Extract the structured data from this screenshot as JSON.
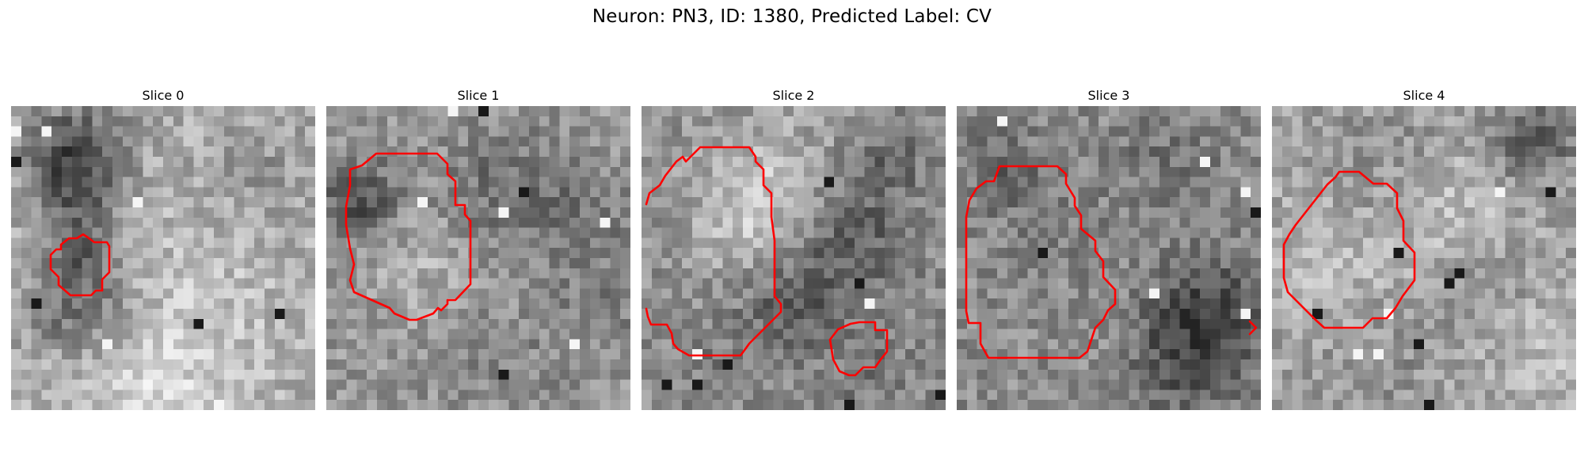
{
  "figure": {
    "title": "Neuron: PN3, ID: 1380, Predicted Label: CV",
    "contour_color": "#ff0000",
    "colormap": "gray"
  },
  "slices": [
    {
      "title": "Slice 0"
    },
    {
      "title": "Slice 1"
    },
    {
      "title": "Slice 2"
    },
    {
      "title": "Slice 3"
    },
    {
      "title": "Slice 4"
    }
  ]
}
